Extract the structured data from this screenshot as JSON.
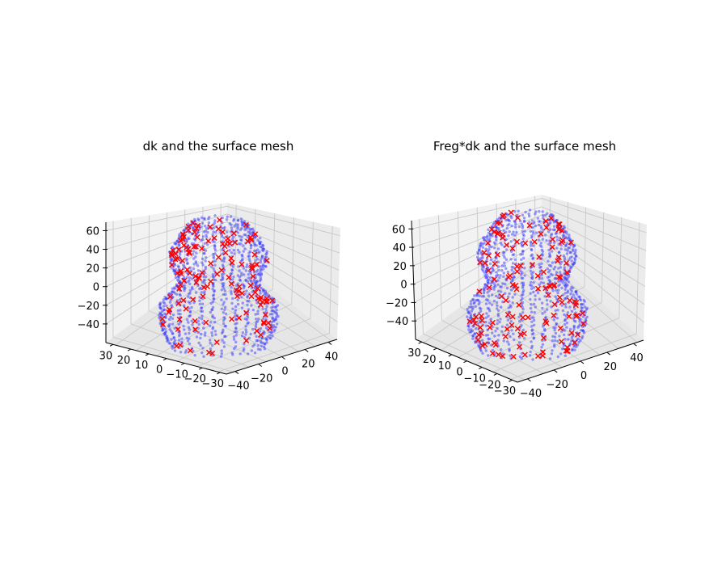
{
  "chart_data": [
    {
      "type": "scatter",
      "title": "dk and the surface mesh",
      "xlabel": "",
      "ylabel": "",
      "zlabel": "",
      "grid": true,
      "x_ticks": [
        "−40",
        "−20",
        "0",
        "20",
        "40"
      ],
      "y_ticks": [
        "30",
        "20",
        "10",
        "0",
        "−10",
        "−20",
        "−30"
      ],
      "z_ticks": [
        "60",
        "40",
        "20",
        "0",
        "−20",
        "−40"
      ],
      "xlim": [
        -45,
        45
      ],
      "ylim": [
        -30,
        30
      ],
      "zlim": [
        -50,
        65
      ],
      "series": [
        {
          "marker": "dot",
          "color": "#0000ff",
          "role": "surface mesh"
        },
        {
          "marker": "x",
          "color": "#ff0000",
          "role": "dk"
        }
      ]
    },
    {
      "type": "scatter",
      "title": "Freg*dk and the surface mesh",
      "xlabel": "",
      "ylabel": "",
      "zlabel": "",
      "grid": true,
      "x_ticks": [
        "−40",
        "−20",
        "0",
        "20",
        "40"
      ],
      "y_ticks": [
        "30",
        "20",
        "10",
        "0",
        "−10",
        "−20",
        "−30"
      ],
      "z_ticks": [
        "60",
        "40",
        "20",
        "0",
        "−20",
        "−40"
      ],
      "xlim": [
        -45,
        45
      ],
      "ylim": [
        -30,
        30
      ],
      "zlim": [
        -50,
        65
      ],
      "series": [
        {
          "marker": "dot",
          "color": "#0000ff",
          "role": "surface mesh"
        },
        {
          "marker": "x",
          "color": "#ff0000",
          "role": "Freg*dk"
        }
      ]
    }
  ]
}
